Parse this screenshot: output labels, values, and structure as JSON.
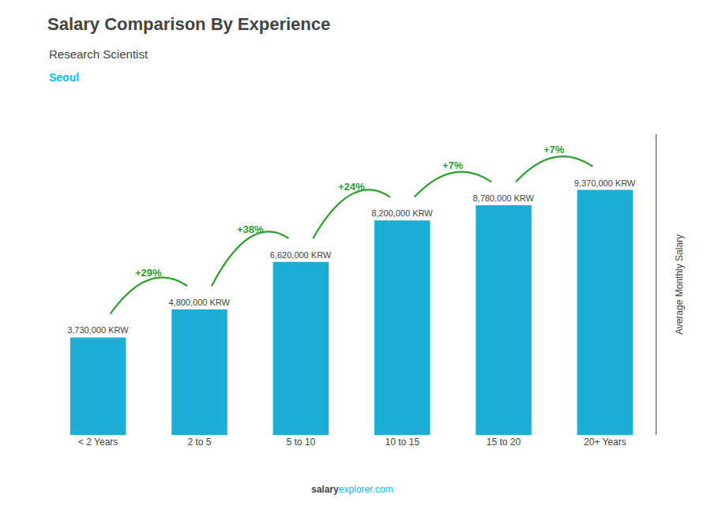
{
  "chart_data": {
    "type": "bar",
    "title": "Salary Comparison By Experience",
    "subtitle": "Research Scientist",
    "city": "Seoul",
    "categories": [
      "< 2 Years",
      "2 to 5",
      "5 to 10",
      "10 to 15",
      "15 to 20",
      "20+ Years"
    ],
    "values": [
      3730000,
      4800000,
      6620000,
      8200000,
      8780000,
      9370000
    ],
    "value_labels": [
      "3,730,000 KRW",
      "4,800,000 KRW",
      "6,620,000 KRW",
      "8,200,000 KRW",
      "8,780,000 KRW",
      "9,370,000 KRW"
    ],
    "data_labels": true,
    "color": "#1BAFD6",
    "ylabel": "Average Monthly Salary",
    "ylim": [
      0,
      11500000
    ],
    "tick_labels": "x",
    "grid": false,
    "annotations": [
      {
        "text": "+29%",
        "from": "< 2 Years",
        "to": "2 to 5"
      },
      {
        "text": "+38%",
        "from": "2 to 5",
        "to": "5 to 10"
      },
      {
        "text": "+24%",
        "from": "5 to 10",
        "to": "10 to 15"
      },
      {
        "text": "+7%",
        "from": "10 to 15",
        "to": "15 to 20"
      },
      {
        "text": "+7%",
        "from": "15 to 20",
        "to": "20+ Years"
      }
    ],
    "footer": [
      "salary",
      "explorer.com"
    ]
  }
}
